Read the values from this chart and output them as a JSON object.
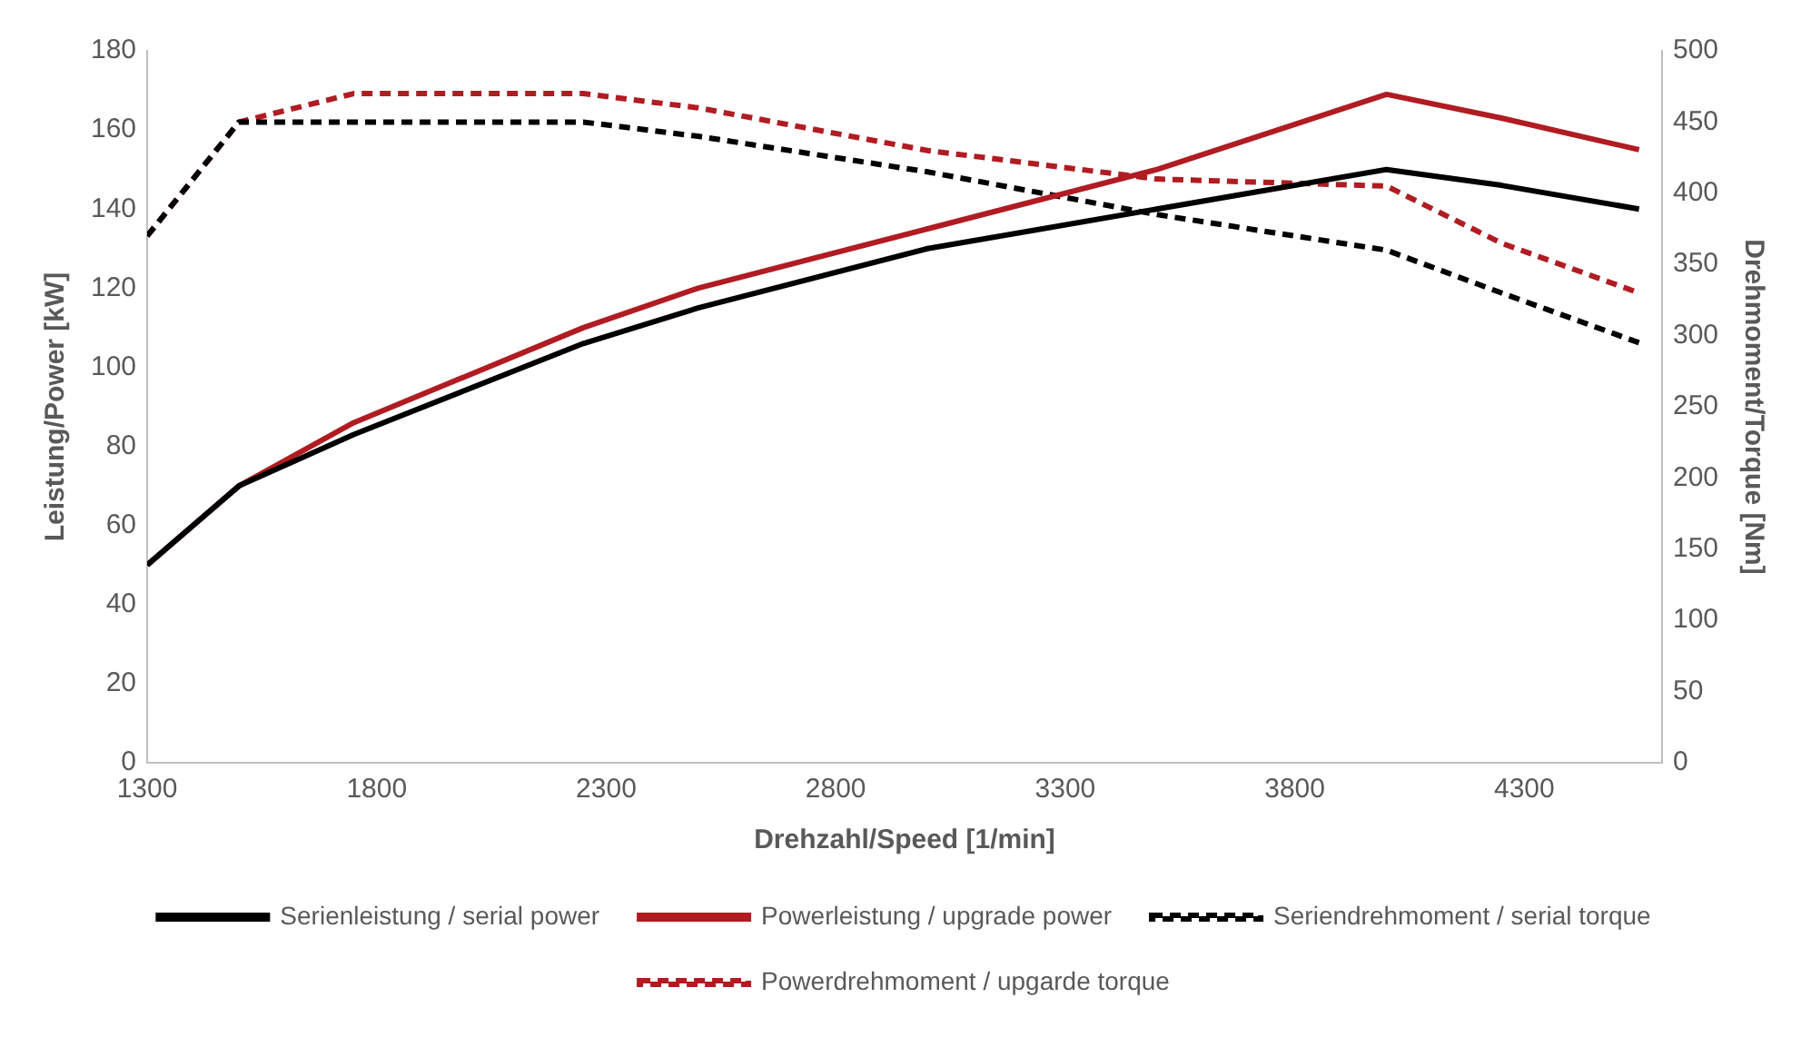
{
  "chart_data": {
    "type": "line",
    "xlabel": "Drehzahl/Speed [1/min]",
    "ylabel": "Leistung/Power [kW]",
    "y2label": "Drehmoment/Torque [Nm]",
    "xlim": [
      1300,
      4600
    ],
    "xticks": [
      1300,
      1800,
      2300,
      2800,
      3300,
      3800,
      4300
    ],
    "ylim": [
      0,
      180
    ],
    "yticks": [
      0,
      20,
      40,
      60,
      80,
      100,
      120,
      140,
      160,
      180
    ],
    "y2lim": [
      0,
      500
    ],
    "y2ticks": [
      0,
      50,
      100,
      150,
      200,
      250,
      300,
      350,
      400,
      450,
      500
    ],
    "grid": false,
    "legend": "bottom",
    "marker": "none",
    "series": [
      {
        "name": "Serienleistung / serial power",
        "color": "#000000",
        "line_style": "solid",
        "x": [
          1300,
          1500,
          1750,
          2250,
          2500,
          3000,
          4000,
          4250,
          4550
        ],
        "values": [
          50,
          70,
          83,
          106,
          115,
          130,
          150,
          146,
          140
        ]
      },
      {
        "name": "Powerleistung / upgrade power",
        "color": "#b01c22",
        "line_style": "solid",
        "x": [
          1300,
          1500,
          1750,
          2250,
          2500,
          3000,
          3500,
          4000,
          4250,
          4550
        ],
        "values": [
          50,
          70,
          86,
          110,
          120,
          135,
          150,
          169,
          163,
          155
        ]
      },
      {
        "name": "Seriendrehmoment / serial torque",
        "color": "#000000",
        "line_style": "dashed",
        "axis": "y2",
        "x": [
          1300,
          1500,
          2250,
          2500,
          3000,
          3500,
          4000,
          4250,
          4550
        ],
        "values": [
          370,
          450,
          450,
          440,
          415,
          385,
          360,
          330,
          295
        ]
      },
      {
        "name": "Powerdrehmoment / upgarde torque",
        "color": "#b01c22",
        "line_style": "dashed",
        "axis": "y2",
        "x": [
          1300,
          1500,
          1750,
          2250,
          2500,
          3000,
          3500,
          4000,
          4250,
          4550
        ],
        "values": [
          370,
          450,
          470,
          470,
          460,
          430,
          410,
          405,
          365,
          330
        ]
      }
    ]
  }
}
